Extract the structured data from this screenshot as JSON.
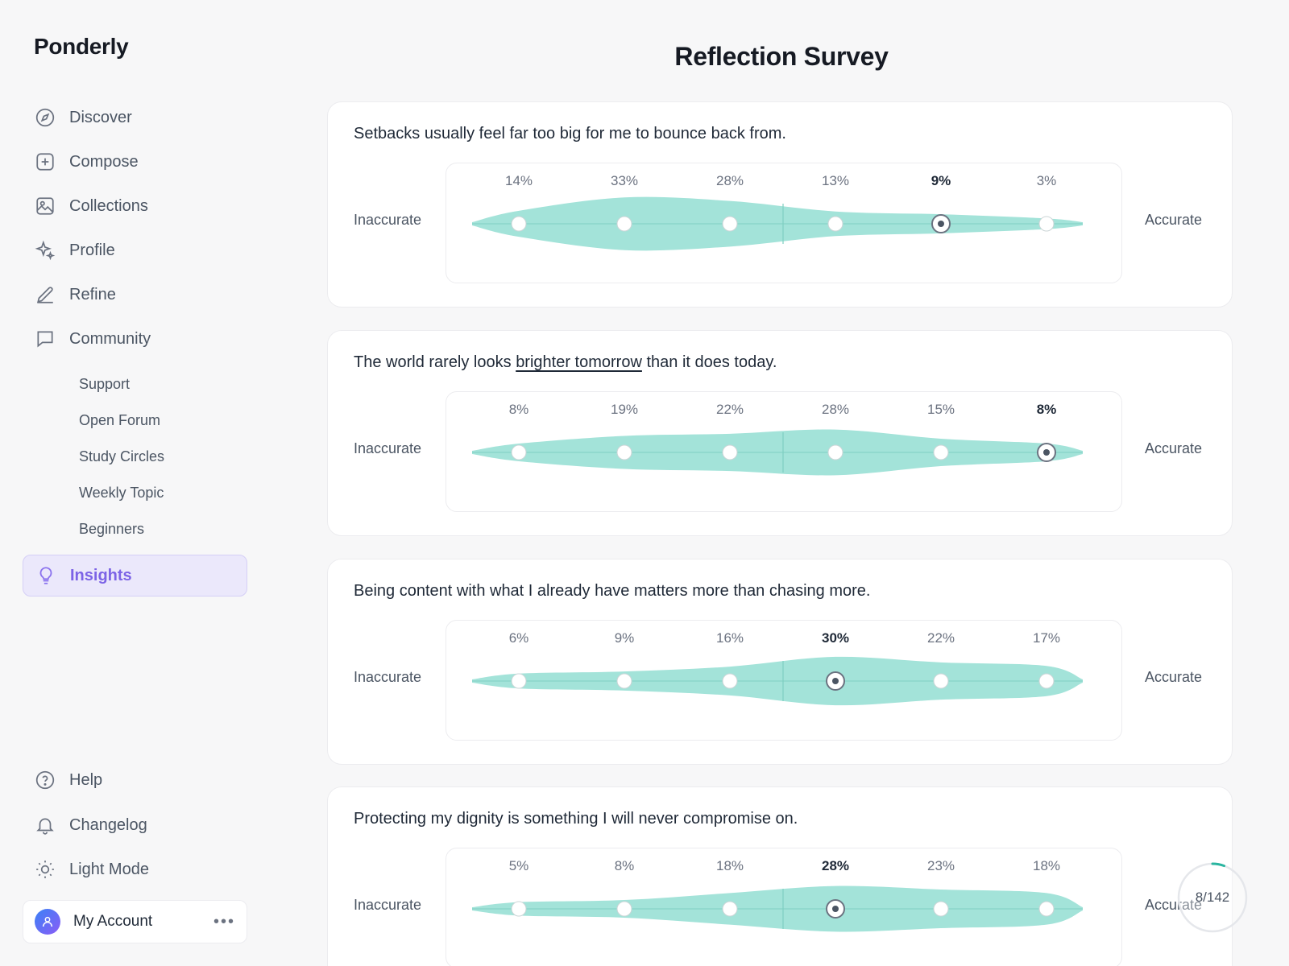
{
  "brand": "Ponderly",
  "nav": [
    {
      "label": "Discover",
      "icon": "compass-icon"
    },
    {
      "label": "Compose",
      "icon": "plus-square-icon"
    },
    {
      "label": "Collections",
      "icon": "image-icon"
    },
    {
      "label": "Profile",
      "icon": "sparkle-icon"
    },
    {
      "label": "Refine",
      "icon": "pencil-icon"
    },
    {
      "label": "Community",
      "icon": "chat-icon"
    }
  ],
  "community_sub": [
    "Support",
    "Open Forum",
    "Study Circles",
    "Weekly Topic",
    "Beginners"
  ],
  "active_nav": {
    "label": "Insights",
    "icon": "lightbulb-icon"
  },
  "bottom_nav": [
    {
      "label": "Help",
      "icon": "help-circle-icon"
    },
    {
      "label": "Changelog",
      "icon": "bell-icon"
    },
    {
      "label": "Light Mode",
      "icon": "sun-icon"
    }
  ],
  "account": {
    "label": "My Account",
    "more": "•••"
  },
  "page_title": "Reflection Survey",
  "scale_left": "Inaccurate",
  "scale_right": "Accurate",
  "questions": [
    {
      "before": "Setbacks usually feel far too big for me to bounce back from.",
      "link": "",
      "after": "",
      "percents": [
        "14%",
        "33%",
        "28%",
        "13%",
        "9%",
        "3%"
      ],
      "values": [
        14,
        33,
        28,
        13,
        9,
        3
      ],
      "selected": 4
    },
    {
      "before": "The world rarely looks ",
      "link": "brighter tomorrow",
      "after": " than it does today.",
      "percents": [
        "8%",
        "19%",
        "22%",
        "28%",
        "15%",
        "8%"
      ],
      "values": [
        8,
        19,
        22,
        28,
        15,
        8
      ],
      "selected": 5
    },
    {
      "before": "Being content with what I already have matters more than chasing more.",
      "link": "",
      "after": "",
      "percents": [
        "6%",
        "9%",
        "16%",
        "30%",
        "22%",
        "17%"
      ],
      "values": [
        6,
        9,
        16,
        30,
        22,
        17
      ],
      "selected": 3
    },
    {
      "before": "Protecting my dignity is something I will never compromise on.",
      "link": "",
      "after": "",
      "percents": [
        "5%",
        "8%",
        "18%",
        "28%",
        "23%",
        "18%"
      ],
      "values": [
        5,
        8,
        18,
        28,
        23,
        18
      ],
      "selected": 3
    }
  ],
  "progress": {
    "text": "8/142",
    "current": 8,
    "total": 142
  },
  "colors": {
    "accent": "#7c63e6",
    "violin": "#a3e3d9",
    "progress": "#2ab5a0"
  }
}
